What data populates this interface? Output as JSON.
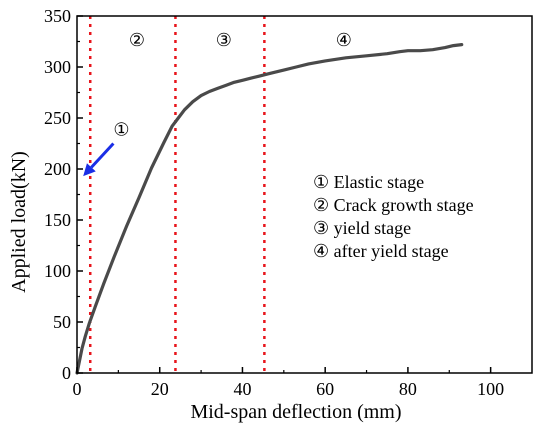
{
  "chart_data": {
    "type": "line",
    "xlabel": "Mid-span deflection (mm)",
    "ylabel": "Applied load(kN)",
    "xlim": [
      0,
      110
    ],
    "ylim": [
      0,
      350
    ],
    "xticks": [
      0,
      20,
      40,
      60,
      80,
      100
    ],
    "yticks": [
      0,
      50,
      100,
      150,
      200,
      250,
      300,
      350
    ],
    "grid": false,
    "series": [
      {
        "color": "#4a4a4a",
        "x": [
          0,
          0.6,
          1.2,
          2.0,
          3.0,
          4.5,
          6.5,
          9.0,
          12.0,
          15.0,
          18.0,
          21.0,
          23.0,
          24.5,
          26.0,
          28.0,
          30.0,
          32.0,
          34.0,
          36.0,
          38.0,
          40.0,
          42.0,
          44.0,
          46.0,
          48.0,
          50.0,
          53.0,
          56.0,
          60.0,
          65.0,
          70.0,
          75.0,
          78.0,
          80.0,
          83.0,
          86.0,
          89.0,
          91.0,
          93.0
        ],
        "y": [
          0,
          12,
          24,
          36,
          49,
          66,
          88,
          114,
          144,
          172,
          201,
          226,
          242,
          250,
          258,
          266,
          272,
          276,
          279,
          282,
          285,
          287,
          289,
          291,
          293,
          295,
          297,
          300,
          303,
          306,
          309,
          311,
          313,
          315,
          316,
          316,
          317,
          319,
          321,
          322
        ]
      }
    ],
    "stage_lines": [
      3.2,
      23.8,
      45.3
    ],
    "stage_labels": [
      "①",
      "②",
      "③",
      "④"
    ],
    "stage_label_x": [
      14.5,
      35.5,
      64.5
    ],
    "annotation": {
      "label": "①",
      "arrow_from": [
        8.8,
        225
      ],
      "arrow_to": [
        1.5,
        193
      ]
    },
    "legend": {
      "position": "right",
      "entries": [
        "① Elastic stage",
        "② Crack growth stage",
        "③ yield stage",
        "④ after yield stage"
      ]
    }
  }
}
